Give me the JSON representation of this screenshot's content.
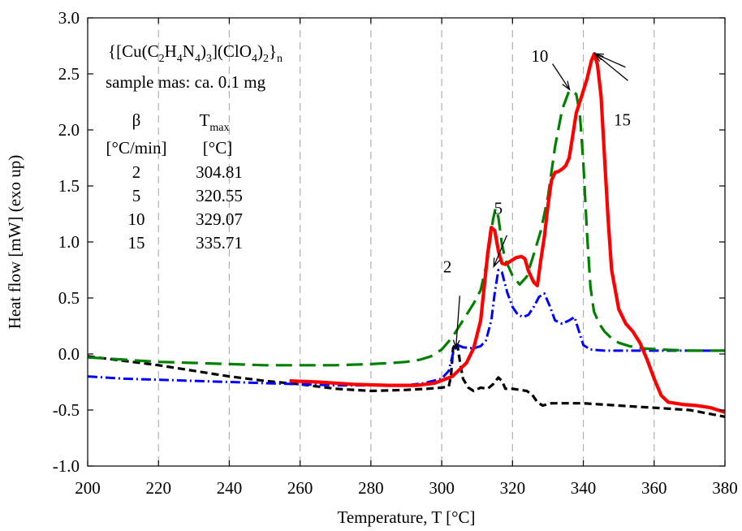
{
  "chart_data": {
    "type": "line",
    "xlabel": "Temperature, T [°C]",
    "ylabel": "Heat flow [mW] (exo up)",
    "xlim": [
      200,
      380
    ],
    "ylim": [
      -1.0,
      3.0
    ],
    "x_ticks": [
      "200",
      "220",
      "240",
      "260",
      "280",
      "300",
      "320",
      "340",
      "360",
      "380"
    ],
    "y_ticks": [
      "-1.0",
      "-0.5",
      "0.0",
      "0.5",
      "1.0",
      "1.5",
      "2.0",
      "2.5",
      "3.0"
    ],
    "grid": "vertical-dashed",
    "compound_formula": {
      "parts": [
        {
          "t": "{[Cu(C",
          "sub": false
        },
        {
          "t": "2",
          "sub": true
        },
        {
          "t": "H",
          "sub": false
        },
        {
          "t": "4",
          "sub": true
        },
        {
          "t": "N",
          "sub": false
        },
        {
          "t": "4",
          "sub": true
        },
        {
          "t": ")",
          "sub": false
        },
        {
          "t": "3",
          "sub": true
        },
        {
          "t": "](ClO",
          "sub": false
        },
        {
          "t": "4",
          "sub": true
        },
        {
          "t": ")",
          "sub": false
        },
        {
          "t": "2",
          "sub": true
        },
        {
          "t": "}",
          "sub": false
        },
        {
          "t": "n",
          "sub": true
        }
      ]
    },
    "sample_mass_note": "sample mas: ca. 0.1 mg",
    "table": {
      "col1_header": "β",
      "col2_header_main": "T",
      "col2_header_sub": "max",
      "col1_unit": "[°C/min]",
      "col2_unit": "[°C]",
      "rows": [
        {
          "beta": "2",
          "tmax": "304.81"
        },
        {
          "beta": "5",
          "tmax": "320.55"
        },
        {
          "beta": "10",
          "tmax": "329.07"
        },
        {
          "beta": "15",
          "tmax": "335.71"
        }
      ]
    },
    "annotations": [
      {
        "label": "2",
        "label_x": 301.6,
        "label_y": 0.73,
        "lines": [
          [
            305.1,
            0.52,
            304.0,
            0.05
          ]
        ]
      },
      {
        "label": "5",
        "label_x": 316.0,
        "label_y": 1.25,
        "lines": [
          [
            318.4,
            1.06,
            314.7,
            0.78
          ]
        ]
      },
      {
        "label": "10",
        "label_x": 327.7,
        "label_y": 2.61,
        "lines": [
          [
            331.3,
            2.59,
            336.1,
            2.36
          ]
        ]
      },
      {
        "label": "15",
        "label_x": 351.0,
        "label_y": 2.04,
        "lines": [
          [
            352.6,
            2.44,
            343.3,
            2.68
          ],
          [
            351.9,
            2.56,
            343.3,
            2.68
          ]
        ]
      }
    ],
    "series": [
      {
        "color": "#000000",
        "dash": "9,5",
        "width": 3.2,
        "points": [
          [
            200,
            -0.02
          ],
          [
            210,
            -0.06
          ],
          [
            220,
            -0.1
          ],
          [
            230,
            -0.15
          ],
          [
            240,
            -0.2
          ],
          [
            250,
            -0.24
          ],
          [
            260,
            -0.27
          ],
          [
            270,
            -0.31
          ],
          [
            280,
            -0.33
          ],
          [
            290,
            -0.32
          ],
          [
            296,
            -0.31
          ],
          [
            300,
            -0.3
          ],
          [
            302,
            -0.29
          ],
          [
            302.6,
            -0.2
          ],
          [
            303.2,
            0.05
          ],
          [
            303.9,
            0.1
          ],
          [
            304.5,
            0.07
          ],
          [
            305.2,
            -0.08
          ],
          [
            306,
            -0.22
          ],
          [
            307.5,
            -0.3
          ],
          [
            309,
            -0.33
          ],
          [
            311,
            -0.3
          ],
          [
            313,
            -0.31
          ],
          [
            314.5,
            -0.27
          ],
          [
            316,
            -0.21
          ],
          [
            317,
            -0.24
          ],
          [
            318,
            -0.31
          ],
          [
            320,
            -0.31
          ],
          [
            322,
            -0.32
          ],
          [
            324,
            -0.33
          ],
          [
            325.5,
            -0.36
          ],
          [
            327,
            -0.43
          ],
          [
            328.5,
            -0.46
          ],
          [
            331,
            -0.44
          ],
          [
            335,
            -0.44
          ],
          [
            340,
            -0.44
          ],
          [
            345,
            -0.45
          ],
          [
            350,
            -0.46
          ],
          [
            355,
            -0.47
          ],
          [
            360,
            -0.48
          ],
          [
            365,
            -0.49
          ],
          [
            370,
            -0.5
          ],
          [
            375,
            -0.53
          ],
          [
            380,
            -0.56
          ]
        ]
      },
      {
        "color": "#0000ff",
        "dash": "12,4,2,4",
        "width": 3.0,
        "points": [
          [
            200,
            -0.2
          ],
          [
            210,
            -0.22
          ],
          [
            220,
            -0.23
          ],
          [
            230,
            -0.24
          ],
          [
            240,
            -0.25
          ],
          [
            250,
            -0.26
          ],
          [
            260,
            -0.27
          ],
          [
            270,
            -0.28
          ],
          [
            280,
            -0.28
          ],
          [
            290,
            -0.28
          ],
          [
            295,
            -0.26
          ],
          [
            300,
            -0.22
          ],
          [
            302,
            -0.15
          ],
          [
            303.3,
            0.02
          ],
          [
            304.5,
            0.08
          ],
          [
            306,
            0.06
          ],
          [
            309,
            0.05
          ],
          [
            311,
            0.07
          ],
          [
            312.5,
            0.12
          ],
          [
            314,
            0.3
          ],
          [
            315,
            0.55
          ],
          [
            316,
            0.75
          ],
          [
            317,
            0.73
          ],
          [
            318.5,
            0.55
          ],
          [
            320,
            0.42
          ],
          [
            321.5,
            0.35
          ],
          [
            323,
            0.33
          ],
          [
            324.5,
            0.35
          ],
          [
            326,
            0.42
          ],
          [
            327.5,
            0.51
          ],
          [
            329,
            0.54
          ],
          [
            330.5,
            0.43
          ],
          [
            332,
            0.3
          ],
          [
            334,
            0.27
          ],
          [
            336,
            0.3
          ],
          [
            337.5,
            0.33
          ],
          [
            338.5,
            0.23
          ],
          [
            340,
            0.08
          ],
          [
            342,
            0.04
          ],
          [
            346,
            0.03
          ],
          [
            350,
            0.03
          ],
          [
            360,
            0.03
          ],
          [
            370,
            0.03
          ],
          [
            380,
            0.03
          ]
        ]
      },
      {
        "color": "#008000",
        "dash": "20,9",
        "width": 3.2,
        "points": [
          [
            200,
            -0.03
          ],
          [
            210,
            -0.05
          ],
          [
            220,
            -0.07
          ],
          [
            230,
            -0.08
          ],
          [
            240,
            -0.09
          ],
          [
            250,
            -0.1
          ],
          [
            260,
            -0.1
          ],
          [
            270,
            -0.1
          ],
          [
            280,
            -0.09
          ],
          [
            286,
            -0.08
          ],
          [
            290,
            -0.07
          ],
          [
            294,
            -0.05
          ],
          [
            297,
            -0.02
          ],
          [
            300,
            0.04
          ],
          [
            303,
            0.15
          ],
          [
            306,
            0.3
          ],
          [
            309,
            0.45
          ],
          [
            311,
            0.57
          ],
          [
            313,
            0.85
          ],
          [
            314.5,
            1.2
          ],
          [
            315.2,
            1.3
          ],
          [
            316,
            1.22
          ],
          [
            317,
            0.98
          ],
          [
            318,
            0.84
          ],
          [
            320,
            0.7
          ],
          [
            322,
            0.62
          ],
          [
            324,
            0.69
          ],
          [
            326,
            0.89
          ],
          [
            328,
            1.1
          ],
          [
            330,
            1.4
          ],
          [
            332,
            1.85
          ],
          [
            334,
            2.18
          ],
          [
            336,
            2.35
          ],
          [
            338,
            2.32
          ],
          [
            339,
            2.15
          ],
          [
            340,
            1.7
          ],
          [
            341,
            1.1
          ],
          [
            342,
            0.6
          ],
          [
            343,
            0.38
          ],
          [
            344.5,
            0.27
          ],
          [
            346,
            0.2
          ],
          [
            348,
            0.14
          ],
          [
            350,
            0.1
          ],
          [
            353,
            0.07
          ],
          [
            357,
            0.05
          ],
          [
            362,
            0.04
          ],
          [
            370,
            0.03
          ],
          [
            380,
            0.03
          ]
        ]
      },
      {
        "color": "#ff0000",
        "dash": "",
        "width": 4.2,
        "points": [
          [
            257,
            -0.24
          ],
          [
            265,
            -0.25
          ],
          [
            275,
            -0.27
          ],
          [
            285,
            -0.28
          ],
          [
            293,
            -0.28
          ],
          [
            298,
            -0.26
          ],
          [
            303,
            -0.2
          ],
          [
            307,
            -0.08
          ],
          [
            309,
            0.05
          ],
          [
            311,
            0.3
          ],
          [
            313,
            0.9
          ],
          [
            314,
            1.13
          ],
          [
            315,
            1.1
          ],
          [
            316,
            0.92
          ],
          [
            317,
            0.81
          ],
          [
            318,
            0.8
          ],
          [
            319,
            0.82
          ],
          [
            321,
            0.86
          ],
          [
            322.5,
            0.87
          ],
          [
            323.5,
            0.85
          ],
          [
            324.5,
            0.74
          ],
          [
            326,
            0.64
          ],
          [
            327,
            0.61
          ],
          [
            328,
            0.84
          ],
          [
            329,
            1.05
          ],
          [
            330,
            1.32
          ],
          [
            331,
            1.55
          ],
          [
            332,
            1.62
          ],
          [
            333,
            1.63
          ],
          [
            334,
            1.65
          ],
          [
            335,
            1.68
          ],
          [
            336,
            1.75
          ],
          [
            337,
            1.95
          ],
          [
            338,
            2.15
          ],
          [
            339.5,
            2.3
          ],
          [
            341,
            2.45
          ],
          [
            342.3,
            2.62
          ],
          [
            343.1,
            2.68
          ],
          [
            344,
            2.58
          ],
          [
            345,
            2.3
          ],
          [
            346,
            1.75
          ],
          [
            347,
            1.2
          ],
          [
            348,
            0.75
          ],
          [
            350,
            0.4
          ],
          [
            352,
            0.27
          ],
          [
            354,
            0.2
          ],
          [
            356,
            0.1
          ],
          [
            358,
            -0.05
          ],
          [
            360,
            -0.22
          ],
          [
            362,
            -0.37
          ],
          [
            364,
            -0.43
          ],
          [
            368,
            -0.45
          ],
          [
            372,
            -0.46
          ],
          [
            376,
            -0.48
          ],
          [
            380,
            -0.52
          ]
        ]
      }
    ]
  }
}
